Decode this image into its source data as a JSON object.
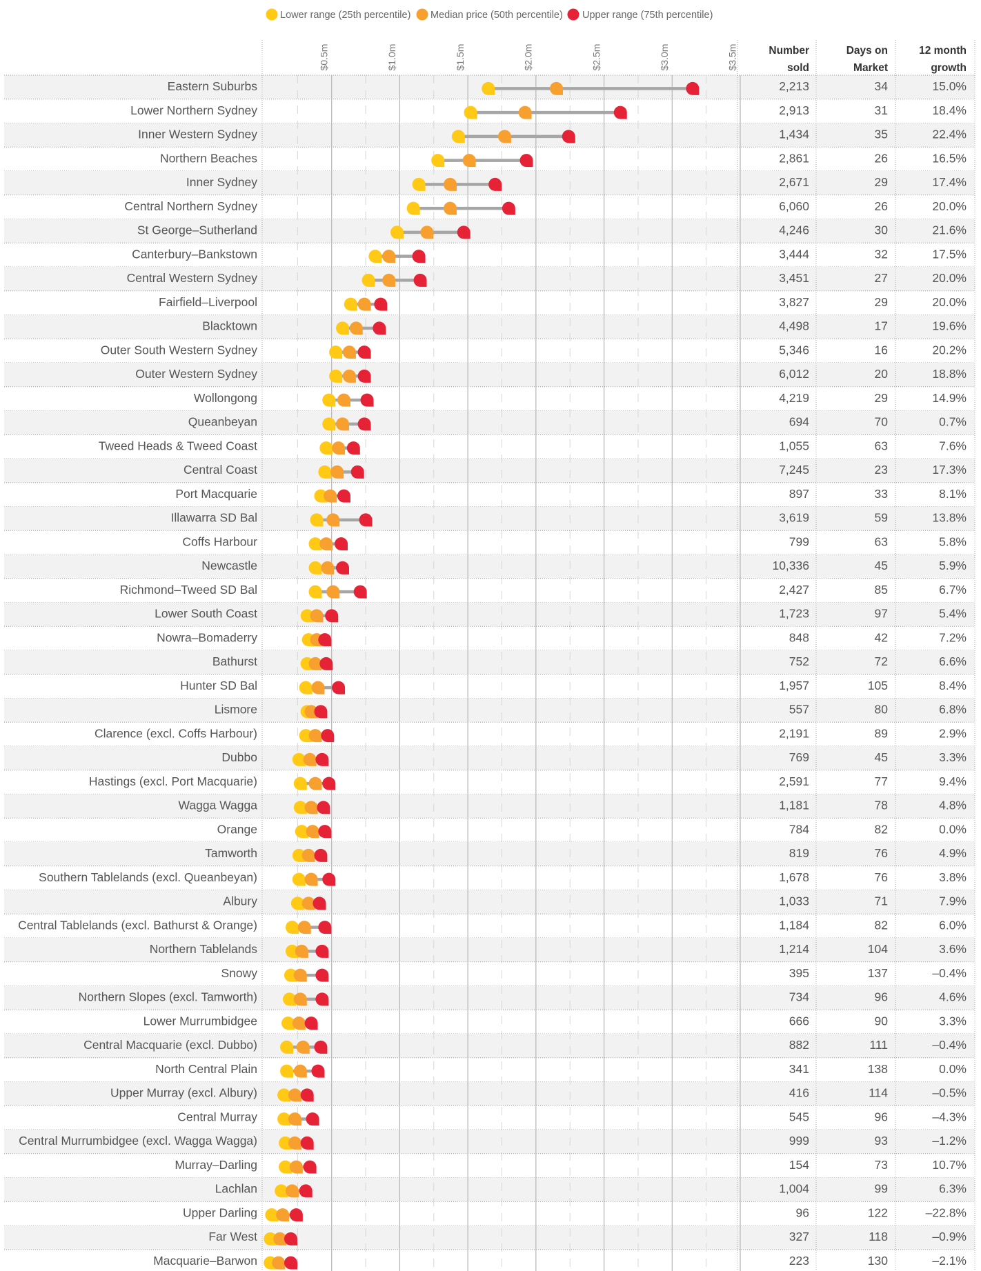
{
  "chart_data": {
    "type": "dumbbell",
    "categories": [
      "Eastern Suburbs",
      "Lower Northern Sydney",
      "Inner Western Sydney",
      "Northern Beaches",
      "Inner Sydney",
      "Central Northern Sydney",
      "St George–Sutherland",
      "Canterbury–Bankstown",
      "Central Western Sydney",
      "Fairfield–Liverpool",
      "Blacktown",
      "Outer South Western Sydney",
      "Outer Western Sydney",
      "Wollongong",
      "Queanbeyan",
      "Tweed Heads & Tweed Coast",
      "Central Coast",
      "Port Macquarie",
      "Illawarra SD Bal",
      "Coffs Harbour",
      "Newcastle",
      "Richmond–Tweed SD Bal",
      "Lower South Coast",
      "Nowra–Bomaderry",
      "Bathurst",
      "Hunter SD Bal",
      "Lismore",
      "Clarence (excl. Coffs Harbour)",
      "Dubbo",
      "Hastings (excl. Port Macquarie)",
      "Wagga Wagga",
      "Orange",
      "Tamworth",
      "Southern Tablelands (excl. Queanbeyan)",
      "Albury",
      "Central Tablelands (excl. Bathurst & Orange)",
      "Northern Tablelands",
      "Snowy",
      "Northern Slopes (excl. Tamworth)",
      "Lower Murrumbidgee",
      "Central Macquarie (excl. Dubbo)",
      "North Central Plain",
      "Upper Murray (excl. Albury)",
      "Central Murray",
      "Central Murrumbidgee (excl. Wagga Wagga)",
      "Murray–Darling",
      "Lachlan",
      "Upper Darling",
      "Far West",
      "Macquarie–Barwon"
    ],
    "series": [
      {
        "name": "Lower range (25th percentile)",
        "color": "#ffc915",
        "values": [
          1.65,
          1.52,
          1.43,
          1.28,
          1.14,
          1.1,
          0.98,
          0.82,
          0.77,
          0.64,
          0.58,
          0.53,
          0.53,
          0.48,
          0.48,
          0.46,
          0.45,
          0.42,
          0.39,
          0.38,
          0.38,
          0.38,
          0.32,
          0.33,
          0.32,
          0.31,
          0.32,
          0.31,
          0.26,
          0.27,
          0.27,
          0.28,
          0.26,
          0.26,
          0.25,
          0.21,
          0.21,
          0.2,
          0.19,
          0.18,
          0.17,
          0.17,
          0.15,
          0.15,
          0.16,
          0.16,
          0.13,
          0.06,
          0.05,
          0.05
        ]
      },
      {
        "name": "Median price (50th percentile)",
        "color": "#f7a030",
        "values": [
          2.15,
          1.92,
          1.77,
          1.51,
          1.37,
          1.37,
          1.2,
          0.92,
          0.92,
          0.74,
          0.68,
          0.63,
          0.63,
          0.59,
          0.58,
          0.55,
          0.54,
          0.49,
          0.51,
          0.46,
          0.47,
          0.51,
          0.39,
          0.39,
          0.38,
          0.4,
          0.35,
          0.38,
          0.34,
          0.38,
          0.35,
          0.36,
          0.33,
          0.35,
          0.33,
          0.3,
          0.28,
          0.27,
          0.27,
          0.26,
          0.29,
          0.27,
          0.23,
          0.23,
          0.23,
          0.24,
          0.21,
          0.14,
          0.12,
          0.11
        ]
      },
      {
        "name": "Upper range (75th percentile)",
        "color": "#e62236",
        "values": [
          3.15,
          2.62,
          2.24,
          1.93,
          1.7,
          1.8,
          1.47,
          1.14,
          1.15,
          0.86,
          0.85,
          0.74,
          0.74,
          0.76,
          0.74,
          0.66,
          0.69,
          0.59,
          0.75,
          0.57,
          0.58,
          0.71,
          0.5,
          0.45,
          0.46,
          0.55,
          0.42,
          0.47,
          0.43,
          0.48,
          0.44,
          0.45,
          0.42,
          0.48,
          0.41,
          0.45,
          0.43,
          0.43,
          0.43,
          0.35,
          0.42,
          0.4,
          0.32,
          0.36,
          0.32,
          0.34,
          0.31,
          0.24,
          0.2,
          0.2
        ]
      }
    ],
    "range_color": "#a6a6a6",
    "xlim": [
      0,
      3.5
    ],
    "xticks": [
      {
        "value": 0.5,
        "label": "$0.5m"
      },
      {
        "value": 1.0,
        "label": "$1.0m"
      },
      {
        "value": 1.5,
        "label": "$1.5m"
      },
      {
        "value": 2.0,
        "label": "$2.0m"
      },
      {
        "value": 2.5,
        "label": "$2.5m"
      },
      {
        "value": 3.0,
        "label": "$3.0m"
      },
      {
        "value": 3.5,
        "label": "$3.5m"
      }
    ],
    "minor_gridlines": [
      0.25,
      0.75,
      1.25,
      1.75,
      2.25,
      2.75,
      3.25
    ],
    "columns": [
      {
        "header": [
          "Number",
          "sold"
        ],
        "values": [
          "2,213",
          "2,913",
          "1,434",
          "2,861",
          "2,671",
          "6,060",
          "4,246",
          "3,444",
          "3,451",
          "3,827",
          "4,498",
          "5,346",
          "6,012",
          "4,219",
          "694",
          "1,055",
          "7,245",
          "897",
          "3,619",
          "799",
          "10,336",
          "2,427",
          "1,723",
          "848",
          "752",
          "1,957",
          "557",
          "2,191",
          "769",
          "2,591",
          "1,181",
          "784",
          "819",
          "1,678",
          "1,033",
          "1,184",
          "1,214",
          "395",
          "734",
          "666",
          "882",
          "341",
          "416",
          "545",
          "999",
          "154",
          "1,004",
          "96",
          "327",
          "223"
        ]
      },
      {
        "header": [
          "Days on",
          "Market"
        ],
        "values": [
          "34",
          "31",
          "35",
          "26",
          "29",
          "26",
          "30",
          "32",
          "27",
          "29",
          "17",
          "16",
          "20",
          "29",
          "70",
          "63",
          "23",
          "33",
          "59",
          "63",
          "45",
          "85",
          "97",
          "42",
          "72",
          "105",
          "80",
          "89",
          "45",
          "77",
          "78",
          "82",
          "76",
          "76",
          "71",
          "82",
          "104",
          "137",
          "96",
          "90",
          "111",
          "138",
          "114",
          "96",
          "93",
          "73",
          "99",
          "122",
          "118",
          "130"
        ]
      },
      {
        "header": [
          "12 month",
          "growth"
        ],
        "values": [
          "15.0%",
          "18.4%",
          "22.4%",
          "16.5%",
          "17.4%",
          "20.0%",
          "21.6%",
          "17.5%",
          "20.0%",
          "20.0%",
          "19.6%",
          "20.2%",
          "18.8%",
          "14.9%",
          "0.7%",
          "7.6%",
          "17.3%",
          "8.1%",
          "13.8%",
          "5.8%",
          "5.9%",
          "6.7%",
          "5.4%",
          "7.2%",
          "6.6%",
          "8.4%",
          "6.8%",
          "2.9%",
          "3.3%",
          "9.4%",
          "4.8%",
          "0.0%",
          "4.9%",
          "3.8%",
          "7.9%",
          "6.0%",
          "3.6%",
          "–0.4%",
          "4.6%",
          "3.3%",
          "–0.4%",
          "0.0%",
          "–0.5%",
          "–4.3%",
          "–1.2%",
          "10.7%",
          "6.3%",
          "–22.8%",
          "–0.9%",
          "–2.1%"
        ]
      }
    ]
  }
}
